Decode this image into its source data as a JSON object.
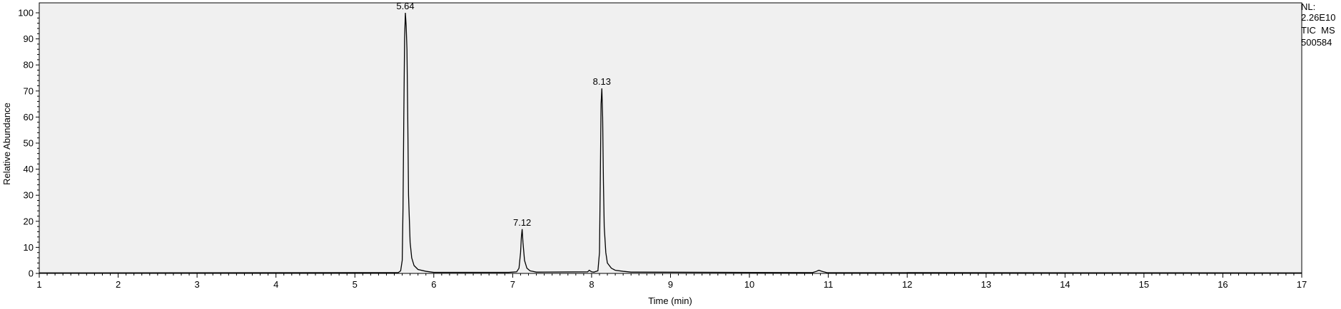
{
  "chart_data": {
    "type": "line",
    "xlabel": "Time (min)",
    "ylabel": "Relative Abundance",
    "xlim": [
      1,
      17
    ],
    "ylim": [
      0,
      100
    ],
    "x_ticks": [
      1,
      2,
      3,
      4,
      5,
      6,
      7,
      8,
      9,
      10,
      11,
      12,
      13,
      14,
      15,
      16,
      17
    ],
    "y_ticks": [
      0,
      10,
      20,
      30,
      40,
      50,
      60,
      70,
      80,
      90,
      100
    ],
    "grid": false,
    "colors": {
      "plot_background": "#f0f0f0",
      "line": "#000000"
    },
    "annotations": [
      {
        "x": 5.64,
        "y": 100,
        "text": "5.64"
      },
      {
        "x": 7.12,
        "y": 17,
        "text": "7.12"
      },
      {
        "x": 8.13,
        "y": 71,
        "text": "8.13"
      }
    ],
    "series": [
      {
        "x": [
          1.0,
          5.55,
          5.58,
          5.6,
          5.61,
          5.62,
          5.63,
          5.64,
          5.65,
          5.66,
          5.67,
          5.68,
          5.7,
          5.72,
          5.75,
          5.8,
          5.9,
          6.0,
          6.95,
          7.05,
          7.08,
          7.1,
          7.11,
          7.12,
          7.13,
          7.15,
          7.18,
          7.22,
          7.3,
          7.95,
          7.97,
          8.0,
          8.03,
          8.08,
          8.1,
          8.11,
          8.12,
          8.13,
          8.14,
          8.15,
          8.16,
          8.18,
          8.2,
          8.25,
          8.3,
          8.4,
          8.5,
          10.8,
          10.85,
          10.88,
          10.92,
          10.98,
          17.0
        ],
        "y": [
          0.2,
          0.3,
          1.0,
          5.0,
          25.0,
          60.0,
          90.0,
          100.0,
          95.0,
          86.0,
          60.0,
          30.0,
          12.0,
          6.0,
          3.0,
          1.5,
          0.8,
          0.4,
          0.4,
          0.6,
          2.0,
          8.0,
          14.0,
          17.0,
          12.0,
          5.0,
          2.0,
          1.0,
          0.5,
          0.6,
          1.2,
          0.6,
          0.5,
          1.0,
          8.0,
          35.0,
          65.0,
          71.0,
          60.0,
          35.0,
          18.0,
          8.0,
          4.0,
          2.0,
          1.2,
          0.8,
          0.5,
          0.3,
          0.8,
          1.2,
          0.8,
          0.3,
          0.2
        ]
      }
    ]
  },
  "info": {
    "nl_label": "NL:",
    "nl_value": "2.26E10",
    "trace_label": "TIC  MS",
    "sample_id": "500584"
  }
}
